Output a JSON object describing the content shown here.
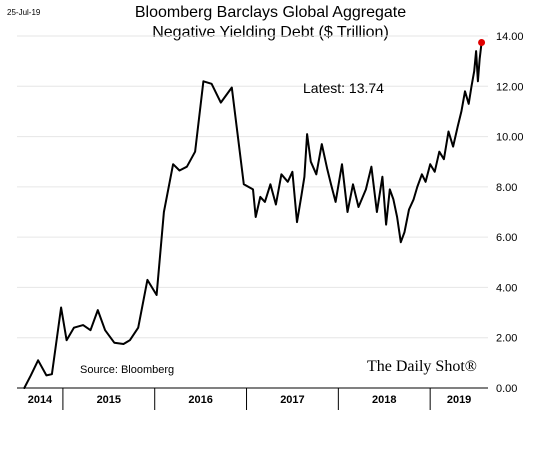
{
  "date_stamp": "25-Jul-19",
  "chart_data": {
    "type": "line",
    "title": "Bloomberg Barclays Global Aggregate",
    "subtitle": "Negative Yielding Debt ($ Trillion)",
    "ylim": [
      0,
      14
    ],
    "y_ticks": [
      "0.00",
      "2.00",
      "4.00",
      "6.00",
      "8.00",
      "10.00",
      "12.00",
      "14.00"
    ],
    "x_labels": [
      "2014",
      "2015",
      "2016",
      "2017",
      "2018",
      "2019"
    ],
    "annotation": "Latest:  13.74",
    "source": "Source: Bloomberg",
    "brand": "The Daily Shot®",
    "latest_value": 13.74,
    "latest_marker_color": "#e00000",
    "grid": true,
    "series": [
      {
        "x": [
          2014.58,
          2014.65,
          2014.73,
          2014.82,
          2014.88,
          2014.98,
          2015.04,
          2015.12,
          2015.22,
          2015.3,
          2015.38,
          2015.46,
          2015.56,
          2015.66,
          2015.73,
          2015.82,
          2015.92,
          2016.02,
          2016.1,
          2016.2,
          2016.27,
          2016.35,
          2016.44,
          2016.53,
          2016.62,
          2016.72,
          2016.84,
          2016.97,
          2017.07,
          2017.1,
          2017.15,
          2017.2,
          2017.26,
          2017.32,
          2017.38,
          2017.45,
          2017.5,
          2017.55,
          2017.6,
          2017.63,
          2017.66,
          2017.7,
          2017.76,
          2017.82,
          2017.88,
          2017.92,
          2017.97,
          2018.04,
          2018.1,
          2018.16,
          2018.22,
          2018.3,
          2018.36,
          2018.42,
          2018.48,
          2018.52,
          2018.56,
          2018.6,
          2018.64,
          2018.68,
          2018.72,
          2018.77,
          2018.82,
          2018.86,
          2018.91,
          2018.95,
          2019.0,
          2019.05,
          2019.1,
          2019.15,
          2019.2,
          2019.25,
          2019.3,
          2019.34,
          2019.38,
          2019.42,
          2019.45,
          2019.48,
          2019.5,
          2019.52,
          2019.54,
          2019.56
        ],
        "values": [
          0.0,
          0.5,
          1.1,
          0.5,
          0.55,
          3.2,
          1.9,
          2.4,
          2.5,
          2.3,
          3.1,
          2.3,
          1.8,
          1.75,
          1.9,
          2.4,
          4.3,
          3.7,
          7.0,
          8.9,
          8.65,
          8.8,
          9.4,
          12.2,
          12.1,
          11.35,
          11.95,
          8.1,
          7.9,
          6.8,
          7.6,
          7.4,
          8.1,
          7.3,
          8.5,
          8.2,
          8.6,
          6.6,
          7.7,
          8.4,
          10.1,
          9.0,
          8.5,
          9.7,
          8.7,
          8.1,
          7.4,
          8.9,
          7.0,
          8.1,
          7.2,
          7.9,
          8.8,
          7.0,
          8.4,
          6.5,
          7.9,
          7.5,
          6.8,
          5.8,
          6.2,
          7.1,
          7.5,
          8.0,
          8.5,
          8.2,
          8.9,
          8.6,
          9.4,
          9.1,
          10.2,
          9.6,
          10.4,
          11.0,
          11.8,
          11.3,
          12.0,
          12.6,
          13.4,
          12.2,
          13.1,
          13.74
        ]
      }
    ]
  }
}
